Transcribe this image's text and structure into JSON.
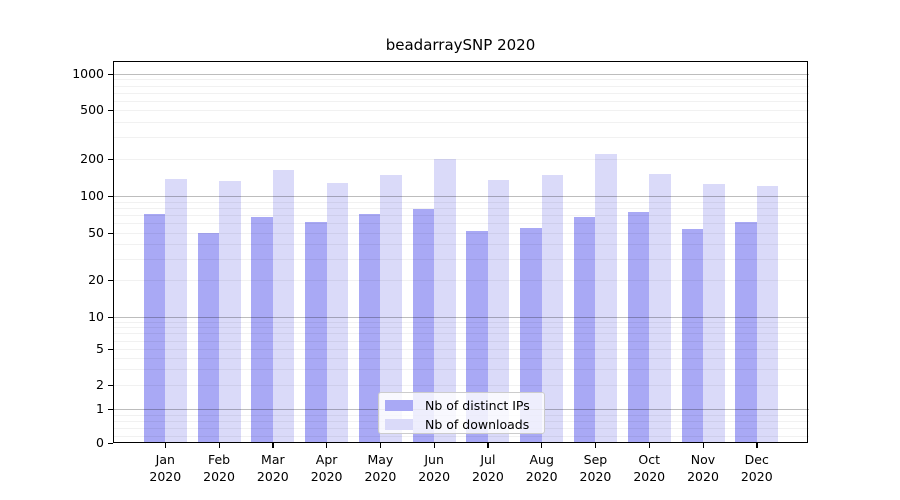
{
  "title": "beadarraySNP 2020",
  "chart_data": {
    "type": "bar",
    "title": "beadarraySNP 2020",
    "xlabel": "",
    "ylabel": "",
    "yscale": "symlog",
    "grid": true,
    "legend_position": "lower-center",
    "categories": [
      "Jan",
      "Feb",
      "Mar",
      "Apr",
      "May",
      "Jun",
      "Jul",
      "Aug",
      "Sep",
      "Oct",
      "Nov",
      "Dec"
    ],
    "category_year": "2020",
    "yticks": [
      0,
      1,
      2,
      5,
      10,
      20,
      50,
      100,
      200,
      500,
      1000
    ],
    "ylim": [
      0,
      1250
    ],
    "series": [
      {
        "name": "Nb of distinct IPs",
        "color": "#a9a9f5",
        "values": [
          72,
          50,
          67,
          62,
          72,
          78,
          52,
          55,
          68,
          74,
          54,
          62
        ]
      },
      {
        "name": "Nb of downloads",
        "color": "#dadaf9",
        "values": [
          138,
          132,
          163,
          128,
          148,
          200,
          135,
          148,
          220,
          151,
          125,
          121
        ]
      }
    ]
  }
}
